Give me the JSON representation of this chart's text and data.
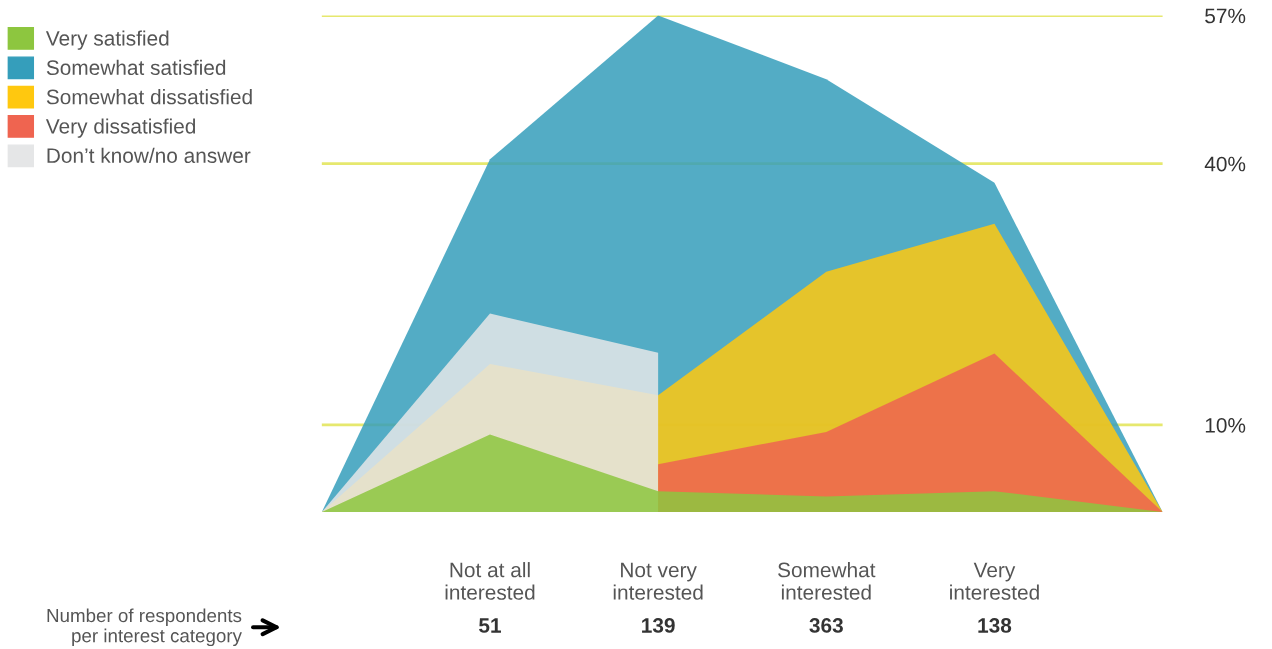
{
  "chart_data": {
    "type": "area",
    "categories": [
      null,
      "Not at all\ninterested",
      "Not very\ninterested",
      "Somewhat\ninterested",
      "Very\ninterested",
      null
    ],
    "series": [
      {
        "name": "Very satisfied",
        "color": "#8dc63f",
        "values": [
          0,
          8.9,
          2.4,
          1.8,
          2.4,
          0
        ]
      },
      {
        "name": "Somewhat satisfied",
        "color": "#359ebb",
        "values": [
          0,
          40.5,
          57,
          49.7,
          37.8,
          0
        ]
      },
      {
        "name": "Somewhat dissatisfied",
        "color": "#ffc80f",
        "values": [
          0,
          17.0,
          13.4,
          27.6,
          33.1,
          0
        ]
      },
      {
        "name": "Very dissatisfied",
        "color": "#ef6450",
        "values": [
          null,
          null,
          5.5,
          9.2,
          18.2,
          0
        ]
      },
      {
        "name": "Don’t know/no answer",
        "color": "#e5e6e7",
        "values": [
          0,
          22.8,
          18.3,
          null,
          null,
          null
        ]
      }
    ],
    "ylim": [
      0,
      57
    ],
    "yticks": [
      {
        "value": 10,
        "label": "10%"
      },
      {
        "value": 40,
        "label": "40%"
      },
      {
        "value": 57,
        "label": "57%"
      }
    ],
    "grid": "y",
    "legend": "top left",
    "annotations": [
      "Number of respondents\nper interest category",
      "51",
      "139",
      "363",
      "138"
    ]
  }
}
